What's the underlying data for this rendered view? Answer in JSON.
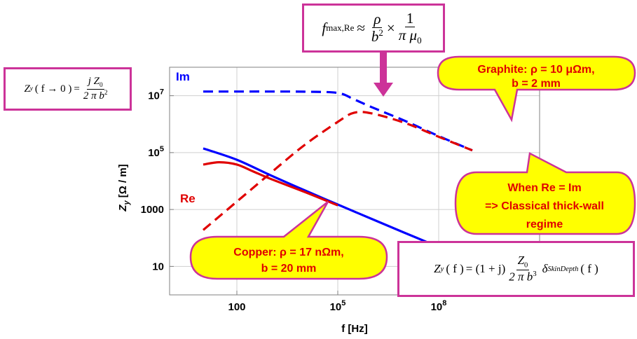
{
  "chart_data": {
    "type": "line",
    "xlabel": "f [Hz]",
    "ylabel": "Z_y [Ω / m]",
    "x_scale": "log",
    "y_scale": "log",
    "xlim": [
      1,
      100000000000.0
    ],
    "ylim": [
      1,
      100000000.0
    ],
    "grid": true,
    "x_ticks": [
      {
        "value": 100,
        "label": "100"
      },
      {
        "value": 100000,
        "label": "10^5"
      },
      {
        "value": 100000000,
        "label": "10^8"
      }
    ],
    "y_ticks": [
      {
        "value": 10,
        "label": "10"
      },
      {
        "value": 1000,
        "label": "1000"
      },
      {
        "value": 100000,
        "label": "10^5"
      },
      {
        "value": 10000000,
        "label": "10^7"
      }
    ],
    "series": [
      {
        "name": "Im",
        "material": "Graphite",
        "color": "#0000ff",
        "style": "dashed",
        "x": [
          10,
          100,
          1000,
          10000,
          100000,
          300000,
          1000000,
          10000000,
          100000000,
          1000000000
        ],
        "y": [
          14000000,
          14000000,
          14000000,
          13800000,
          12500000,
          7500000,
          4000000,
          1300000,
          380000,
          120000
        ]
      },
      {
        "name": "Re",
        "material": "Graphite",
        "color": "#e00000",
        "style": "dashed",
        "x": [
          10,
          100,
          1000,
          10000,
          100000,
          300000,
          1000000,
          10000000,
          100000000,
          1000000000
        ],
        "y": [
          190,
          1900,
          19000,
          180000,
          1200000,
          2500000,
          2400000,
          1100000,
          360000,
          120000
        ]
      },
      {
        "name": "Im",
        "material": "Copper",
        "color": "#0000ff",
        "style": "solid",
        "x": [
          10,
          100,
          1000,
          10000,
          100000,
          1000000,
          10000000,
          100000000,
          1000000000
        ],
        "y": [
          140000,
          56000,
          16000,
          4800,
          1500,
          470,
          150,
          48,
          15
        ]
      },
      {
        "name": "Re",
        "material": "Copper",
        "color": "#e00000",
        "style": "solid",
        "x": [
          10,
          30,
          100,
          300,
          1000,
          10000,
          100000
        ],
        "y": [
          38000,
          46000,
          38000,
          22000,
          12000,
          4200,
          1400
        ]
      }
    ],
    "annotations": {
      "graphite": {
        "line1": "Graphite: ρ = 10 μΩm,",
        "line2": "b = 2 mm"
      },
      "copper": {
        "line1": "Copper: ρ = 17 nΩm,",
        "line2": "b = 20 mm"
      },
      "regime": {
        "line1": "When Re = Im",
        "line2": "=> Classical thick-wall",
        "line3": "regime"
      }
    },
    "formulas": {
      "fmax": {
        "lhs": "f",
        "sub": "max,Re",
        "approx": "≈",
        "num1": "ρ",
        "den1": "b",
        "den1_sup": "2",
        "times": "×",
        "num2": "1",
        "den2": "π μ",
        "den2_sub": "0"
      },
      "lowfreq": {
        "lhs": "Z",
        "sub": "y",
        "arg": "( f → 0 )",
        "eq": "=",
        "num": "j Z",
        "num_sub": "0",
        "den": "2 π b",
        "den_sup": "2"
      },
      "thickwall": {
        "lhs": "Z",
        "sub": "y",
        "arg": "( f )",
        "eq": "= (1 + j)",
        "num": "Z",
        "num_sub": "0",
        "den": "2 π b",
        "den_sup": "3",
        "delta": "δ",
        "delta_sub": "SkinDepth",
        "delta_arg": "( f )"
      }
    },
    "legend": "inline labels"
  }
}
